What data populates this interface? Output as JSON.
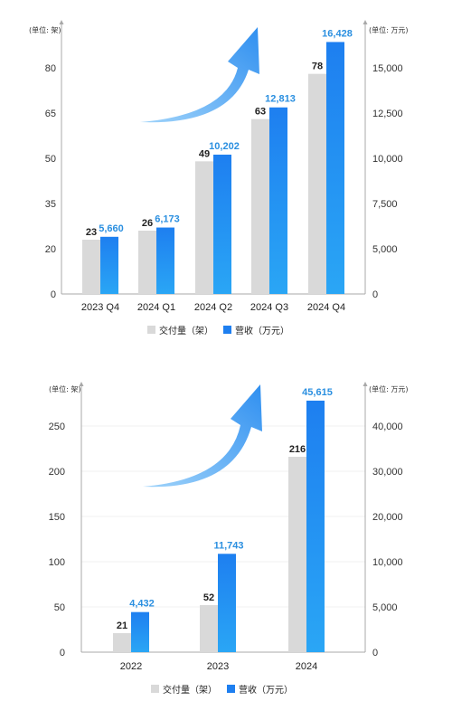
{
  "colors": {
    "delivery": "#d9d9d9",
    "revenue_top": "#1e7ff0",
    "revenue_bottom": "#2aa6f5",
    "arrow_light": "#9fd3fa",
    "arrow_dark": "#2f8ff0",
    "grid": "#f0f0f0",
    "axis": "#a8a8a8"
  },
  "chart_data": [
    {
      "type": "bar",
      "categories": [
        "2023 Q4",
        "2024 Q1",
        "2024 Q2",
        "2024 Q3",
        "2024 Q4"
      ],
      "series": [
        {
          "name": "交付量（架）",
          "axis": "left",
          "values": [
            23,
            26,
            49,
            63,
            78
          ],
          "labels": [
            "23",
            "26",
            "49",
            "63",
            "78"
          ]
        },
        {
          "name": "营收（万元）",
          "axis": "right",
          "values": [
            5660,
            6173,
            10202,
            12813,
            16428
          ],
          "labels": [
            "5,660",
            "6,173",
            "10,202",
            "12,813",
            "16,428"
          ]
        }
      ],
      "left_axis": {
        "unit": "(单位: 架)",
        "range": [
          0,
          90
        ],
        "ticks": [
          0,
          20,
          35,
          50,
          65,
          80
        ]
      },
      "right_axis": {
        "unit": "(单位: 万元)",
        "range": [
          0,
          17500
        ],
        "ticks": [
          "0",
          "5,000",
          "7,500",
          "10,000",
          "12,500",
          "15,000"
        ]
      },
      "grid": false,
      "legend": [
        "交付量（架）",
        "营收（万元）"
      ],
      "legend_position": "bottom"
    },
    {
      "type": "bar",
      "categories": [
        "2022",
        "2023",
        "2024"
      ],
      "series": [
        {
          "name": "交付量（架）",
          "axis": "left",
          "values": [
            21,
            52,
            216
          ],
          "labels": [
            "21",
            "52",
            "216"
          ]
        },
        {
          "name": "营收（万元）",
          "axis": "right",
          "values": [
            4432,
            11743,
            45615
          ],
          "labels": [
            "4,432",
            "11,743",
            "45,615"
          ]
        }
      ],
      "left_axis": {
        "unit": "(单位: 架)",
        "range": [
          0,
          290
        ],
        "ticks": [
          0,
          50,
          100,
          150,
          200,
          250
        ]
      },
      "right_axis": {
        "unit": "(单位: 万元)",
        "range": [
          0,
          49000
        ],
        "ticks": [
          "0",
          "5,000",
          "10,000",
          "20,000",
          "30,000",
          "40,000"
        ]
      },
      "grid": true,
      "legend": [
        "交付量（架）",
        "营收（万元）"
      ],
      "legend_position": "bottom"
    }
  ]
}
